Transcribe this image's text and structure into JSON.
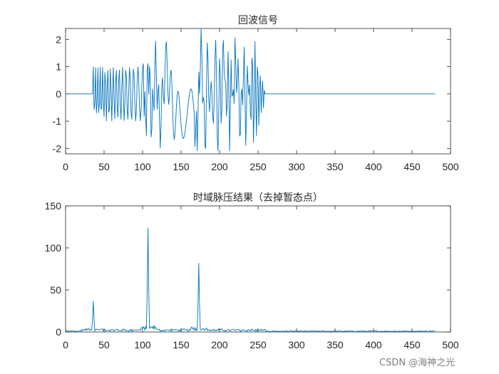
{
  "watermark": "CSDN @海神之光",
  "colors": {
    "line": "#0072BD",
    "axis": "#262626",
    "background": "#ffffff"
  },
  "chart_data": [
    {
      "type": "line",
      "title": "回波信号",
      "xlabel": "",
      "ylabel": "",
      "xlim": [
        0,
        500
      ],
      "ylim": [
        -2.2,
        2.4
      ],
      "xticks": [
        0,
        50,
        100,
        150,
        200,
        250,
        300,
        350,
        400,
        450,
        500
      ],
      "yticks": [
        -2,
        -1,
        0,
        1,
        2
      ],
      "grid": false,
      "series": [
        {
          "signal_extent": [
            0,
            480
          ],
          "pulses": [
            {
              "range": [
                36,
                258
              ],
              "amplitude": 1.0,
              "description_type": "lfm"
            },
            {
              "range": [
                101,
                220
              ],
              "amplitude": 1.0,
              "description_type": "lfm"
            },
            {
              "range": [
                168,
                258
              ],
              "amplitude": 1.0,
              "description_type": "lfm"
            }
          ],
          "peak_min": -2.1,
          "peak_max": 2.4
        }
      ]
    },
    {
      "type": "line",
      "title": "时域脉压结果（去掉暂态点）",
      "xlabel": "",
      "ylabel": "",
      "xlim": [
        0,
        500
      ],
      "ylim": [
        0,
        150
      ],
      "xticks": [
        0,
        50,
        100,
        150,
        200,
        250,
        300,
        350,
        400,
        450,
        500
      ],
      "yticks": [
        0,
        50,
        100,
        150
      ],
      "grid": false,
      "series": [
        {
          "peaks": [
            {
              "x": 36,
              "y": 37
            },
            {
              "x": 107,
              "y": 124
            },
            {
              "x": 173,
              "y": 82
            }
          ],
          "extent": [
            0,
            480
          ]
        }
      ]
    }
  ]
}
